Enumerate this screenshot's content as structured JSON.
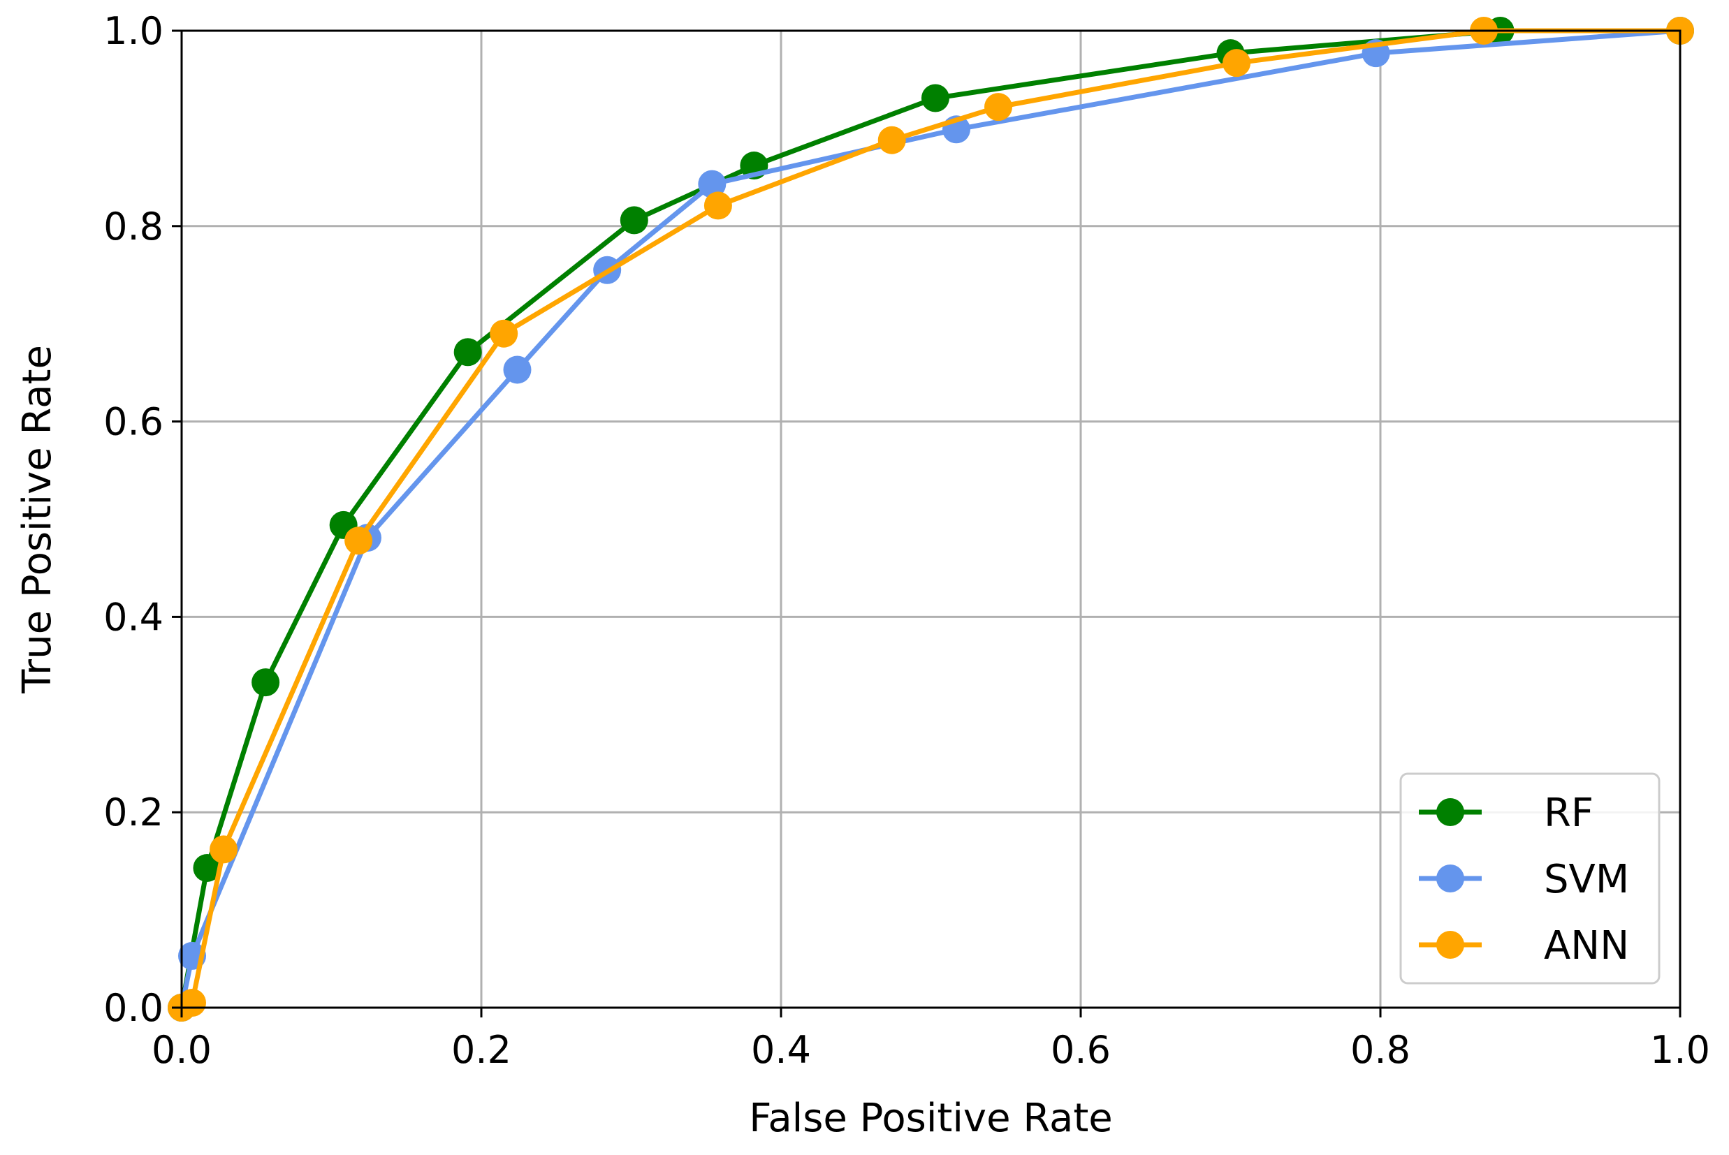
{
  "chart_data": {
    "type": "line",
    "title": "",
    "xlabel": "False Positive Rate",
    "ylabel": "True Positive Rate",
    "xlim": [
      0.0,
      1.0
    ],
    "ylim": [
      0.0,
      1.0
    ],
    "xticks": [
      "0.0",
      "0.2",
      "0.4",
      "0.6",
      "0.8",
      "1.0"
    ],
    "yticks": [
      "0.0",
      "0.2",
      "0.4",
      "0.6",
      "0.8",
      "1.0"
    ],
    "grid": true,
    "legend_position": "lower-right",
    "series": [
      {
        "name": "RF",
        "color": "#008000",
        "marker": "circle",
        "x": [
          0.0,
          0.017,
          0.056,
          0.108,
          0.191,
          0.302,
          0.382,
          0.503,
          0.7,
          0.88,
          1.0
        ],
        "y": [
          0.0,
          0.143,
          0.333,
          0.494,
          0.671,
          0.806,
          0.862,
          0.931,
          0.977,
          1.0,
          1.0
        ]
      },
      {
        "name": "SVM",
        "color": "#6495ED",
        "marker": "circle",
        "x": [
          0.0,
          0.007,
          0.124,
          0.224,
          0.284,
          0.354,
          0.517,
          0.797,
          1.0
        ],
        "y": [
          0.0,
          0.053,
          0.481,
          0.653,
          0.755,
          0.843,
          0.899,
          0.977,
          1.0
        ]
      },
      {
        "name": "ANN",
        "color": "#FFA500",
        "marker": "circle",
        "x": [
          0.0,
          0.007,
          0.028,
          0.118,
          0.215,
          0.358,
          0.474,
          0.545,
          0.704,
          0.869,
          1.0
        ],
        "y": [
          0.0,
          0.005,
          0.162,
          0.478,
          0.69,
          0.821,
          0.888,
          0.922,
          0.967,
          1.0,
          1.0
        ]
      }
    ]
  }
}
